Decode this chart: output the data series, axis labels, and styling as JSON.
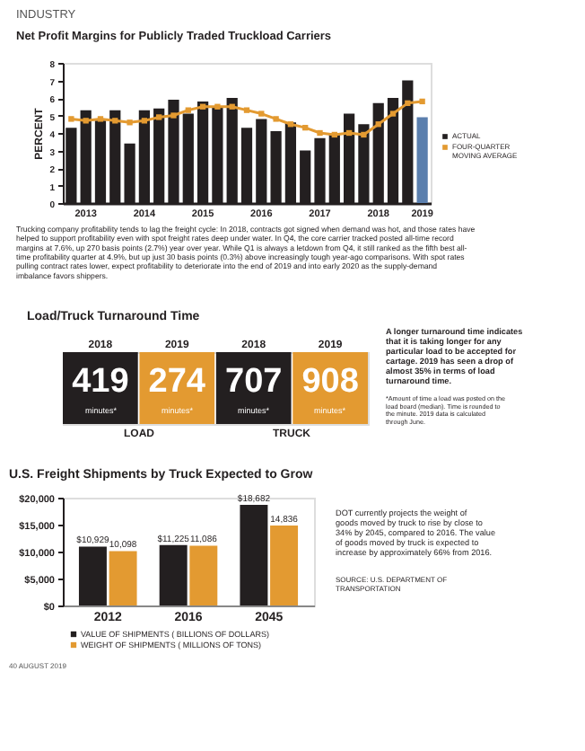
{
  "chart_data": [
    {
      "type": "bar",
      "title": "Net Profit Margins for Publicly Traded Truckload Carriers",
      "ylabel": "PERCENT",
      "categories": [
        null,
        "2013",
        null,
        null,
        null,
        "2014",
        null,
        null,
        null,
        "2015",
        null,
        null,
        null,
        "2016",
        null,
        null,
        null,
        "2017",
        null,
        null,
        null,
        "2018",
        null,
        null,
        "2019"
      ],
      "ylim": [
        0,
        8
      ],
      "yticks": [
        0,
        1,
        2,
        3,
        4,
        5,
        6,
        7,
        8
      ],
      "grid": false,
      "legend": "right",
      "marker": "square",
      "series": [
        {
          "name": "ACTUAL",
          "color": "#231f20",
          "colors": [
            "#231f20",
            "#231f20",
            "#231f20",
            "#231f20",
            "#231f20",
            "#231f20",
            "#231f20",
            "#231f20",
            "#231f20",
            "#231f20",
            "#231f20",
            "#231f20",
            "#231f20",
            "#231f20",
            "#231f20",
            "#231f20",
            "#231f20",
            "#231f20",
            "#231f20",
            "#231f20",
            "#231f20",
            "#231f20",
            "#231f20",
            "#231f20",
            "#5b7fae"
          ],
          "values": [
            4.3,
            5.3,
            4.7,
            5.3,
            3.4,
            5.3,
            5.4,
            5.9,
            5.1,
            5.8,
            5.5,
            6.0,
            4.3,
            4.8,
            4.1,
            4.6,
            3.0,
            3.7,
            3.9,
            5.1,
            4.5,
            5.7,
            6.0,
            7.0,
            4.9
          ]
        },
        {
          "name": "FOUR-QUARTER MOVING AVERAGE",
          "type": "line",
          "color": "#e39a31",
          "values": [
            4.8,
            4.7,
            4.8,
            4.7,
            4.6,
            4.7,
            4.9,
            5.0,
            5.3,
            5.5,
            5.5,
            5.5,
            5.3,
            5.1,
            4.8,
            4.5,
            4.3,
            4.0,
            3.9,
            4.0,
            3.9,
            4.5,
            5.1,
            5.7,
            5.8
          ]
        }
      ],
      "annotations": [
        "INDUSTRY",
        "Trucking company profitability tends to lag the freight cycle: In 2018, contracts got signed when demand was hot, and those rates have helped to support profitability even with spot freight rates deep under water. In Q4, the core carrier tracked posted all-time record margins at 7.6%, up 270 basis points (2.7%) year over year. While Q1 is always a letdown from Q4, it still ranked as the fifth best all-time profitability quarter at 4.9%, but up just 30 basis points (0.3%) above increasingly tough year-ago comparisons. With spot rates pulling contract rates lower, expect profitability to deteriorate into the end of 2019 and into early 2020 as the supply-demand imbalance favors shippers."
      ]
    },
    {
      "type": "other",
      "title": "Load/Truck Turnaround Time",
      "categories": [
        "2018",
        "2019",
        "2018",
        "2019"
      ],
      "values": [
        419,
        274,
        707,
        908
      ],
      "colors": [
        "#231f20",
        "#e39a31",
        "#231f20",
        "#e39a31"
      ],
      "data_labels": true,
      "annotations": [
        "minutes*",
        "minutes*",
        "minutes*",
        "minutes*",
        "LOAD",
        "TRUCK",
        "A longer turnaround time indicates that it is taking longer for any particular load to be accepted for cartage. 2019 has seen a drop of almost 35% in terms of load turnaround time.",
        "*Amount of time a load was posted on the load board (median). Time is rounded to the minute. 2019 data is calculated through June."
      ]
    },
    {
      "type": "bar",
      "title": "U.S. Freight Shipments by Truck Expected to Grow",
      "categories": [
        "2012",
        "2016",
        "2045"
      ],
      "ylim": [
        0,
        20000
      ],
      "yticks": [
        {
          "value": 0,
          "label": "$0"
        },
        {
          "value": 5000,
          "label": "$5,000"
        },
        {
          "value": 10000,
          "label": "$10,000"
        },
        {
          "value": 15000,
          "label": "$15,000"
        },
        {
          "value": 20000,
          "label": "$20,000"
        }
      ],
      "grid": false,
      "legend": "bottom",
      "series": [
        {
          "name": "VALUE OF SHIPMENTS ( BILLIONS OF DOLLARS)",
          "color": "#231f20",
          "values": [
            10929,
            11225,
            18682
          ],
          "value_labels": [
            "$10,929",
            "$11,225",
            "$18,682"
          ]
        },
        {
          "name": "WEIGHT OF SHIPMENTS ( MILLIONS OF TONS)",
          "color": "#e39a31",
          "values": [
            10098,
            11086,
            14836
          ],
          "value_labels": [
            "10,098",
            "11,086",
            "14,836"
          ]
        }
      ],
      "annotations": [
        "DOT currently projects the weight of goods moved by truck to rise by close to 34% by 2045, compared to 2016. The value of goods moved by truck is expected to increase by approximately 66% from 2016.",
        "SOURCE: U.S. DEPARTMENT OF TRANSPORTATION",
        "40    AUGUST 2019"
      ]
    }
  ]
}
